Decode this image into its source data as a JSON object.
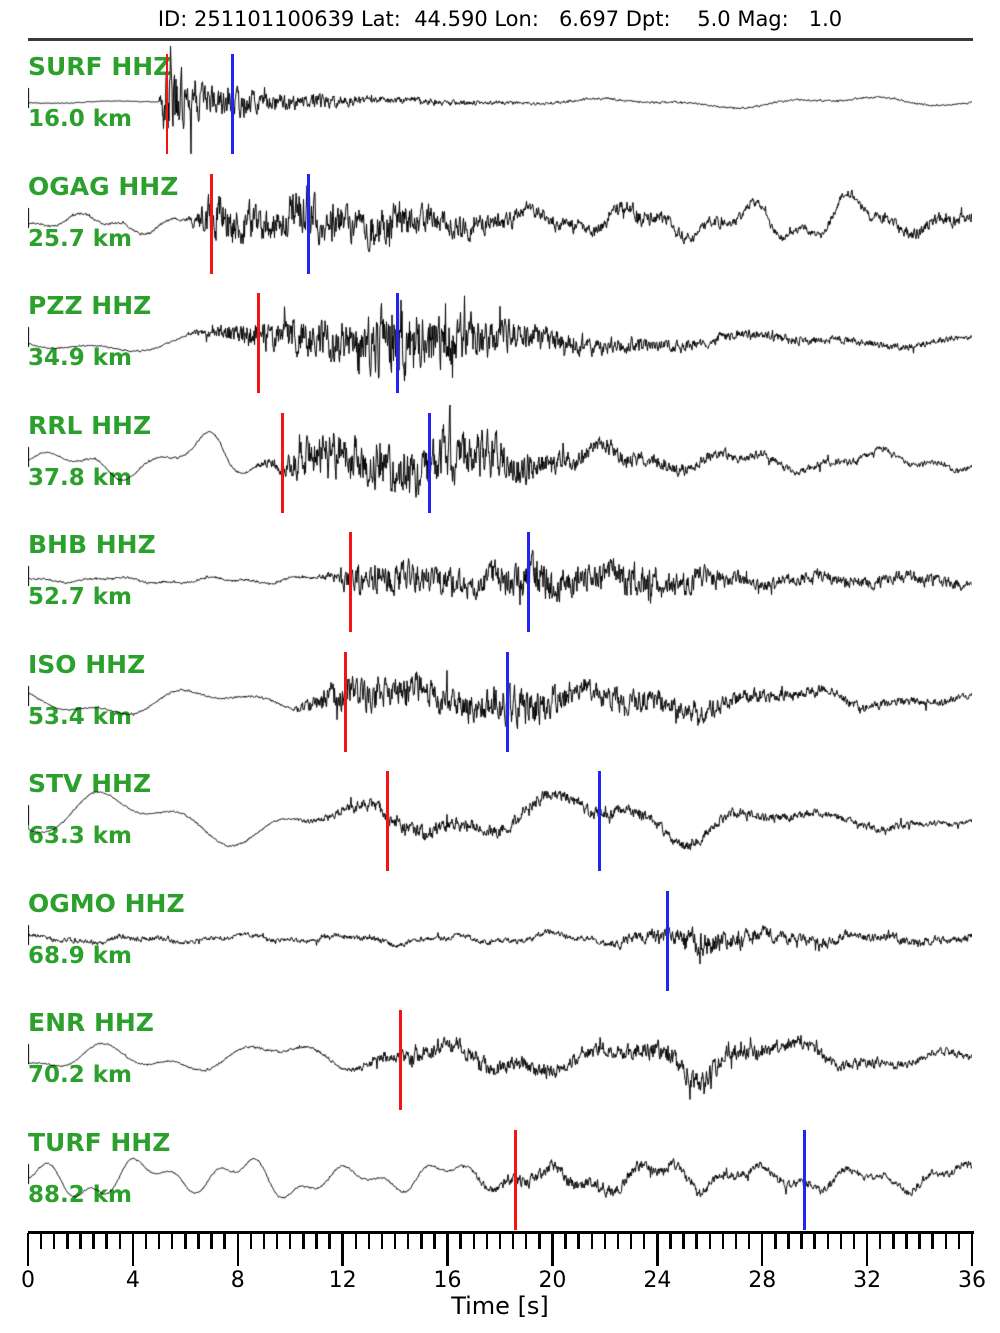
{
  "header": {
    "title": "ID: 251101100639 Lat:  44.590 Lon:   6.697 Dpt:    5.0 Mag:   1.0"
  },
  "colors": {
    "station_label": "#2ca02c",
    "p_pick": "#f41414",
    "s_pick": "#2424f0",
    "trace": "#000000",
    "axis": "#000000"
  },
  "chart_data": {
    "type": "line",
    "title": "ID: 251101100639 Lat:  44.590 Lon:   6.697 Dpt:    5.0 Mag:   1.0",
    "xlabel": "Time [s]",
    "xlim": [
      0,
      36
    ],
    "x_major_ticks": [
      0,
      4,
      8,
      12,
      16,
      20,
      24,
      28,
      32,
      36
    ],
    "x_minor_tick_step": 0.5,
    "grid": false,
    "legend": false,
    "stations": [
      {
        "label": "SURF HHZ",
        "distance": "16.0 km",
        "p_pick_s": 5.3,
        "s_pick_s": 7.8,
        "lf_period_s": 9,
        "seed": 3,
        "envelope": [
          [
            0,
            1.2,
            0.4
          ],
          [
            5.0,
            1.2,
            0.4
          ],
          [
            5.3,
            1.5,
            46
          ],
          [
            5.9,
            1.5,
            30
          ],
          [
            6.6,
            1.5,
            16
          ],
          [
            7.6,
            1.5,
            14
          ],
          [
            8.1,
            1.5,
            18
          ],
          [
            8.7,
            1.5,
            12
          ],
          [
            10,
            1.5,
            8
          ],
          [
            12,
            1.5,
            6
          ],
          [
            14,
            2,
            4
          ],
          [
            17,
            2,
            2.5
          ],
          [
            20,
            3,
            1.6
          ],
          [
            24,
            4,
            1.2
          ],
          [
            28,
            5,
            1
          ],
          [
            31,
            6,
            1
          ],
          [
            34,
            5,
            1
          ],
          [
            36,
            3,
            1
          ]
        ]
      },
      {
        "label": "OGAG HHZ",
        "distance": "25.7 km",
        "p_pick_s": 7.0,
        "s_pick_s": 10.7,
        "lf_period_s": 4.2,
        "seed": 17,
        "envelope": [
          [
            0,
            7,
            1
          ],
          [
            2,
            9,
            1.2
          ],
          [
            4,
            10,
            1.2
          ],
          [
            6,
            8,
            1.5
          ],
          [
            7.0,
            7,
            26
          ],
          [
            8,
            6,
            22
          ],
          [
            9.5,
            6,
            18
          ],
          [
            10.7,
            6,
            30
          ],
          [
            11.2,
            6,
            24
          ],
          [
            12.5,
            9,
            18
          ],
          [
            14,
            12,
            20
          ],
          [
            15.5,
            9,
            12
          ],
          [
            17,
            7,
            12
          ],
          [
            18.5,
            9,
            9
          ],
          [
            20,
            12,
            7
          ],
          [
            21.5,
            13,
            6
          ],
          [
            23,
            15,
            9
          ],
          [
            24.5,
            16,
            7
          ],
          [
            26,
            9,
            6
          ],
          [
            27.5,
            20,
            5
          ],
          [
            29.5,
            28,
            4
          ],
          [
            31.5,
            24,
            5
          ],
          [
            33,
            14,
            6
          ],
          [
            34.5,
            10,
            7
          ],
          [
            36,
            12,
            5
          ]
        ]
      },
      {
        "label": "PZZ HHZ",
        "distance": "34.9 km",
        "p_pick_s": 8.8,
        "s_pick_s": 14.1,
        "lf_period_s": 10,
        "seed": 42,
        "envelope": [
          [
            0,
            11,
            0.7
          ],
          [
            3,
            13,
            0.8
          ],
          [
            6,
            10,
            1
          ],
          [
            8.8,
            9,
            16
          ],
          [
            10,
            7,
            18
          ],
          [
            11.5,
            6,
            22
          ],
          [
            13,
            6,
            30
          ],
          [
            13.9,
            6,
            42
          ],
          [
            15,
            6,
            34
          ],
          [
            16.2,
            6,
            28
          ],
          [
            17.5,
            6,
            20
          ],
          [
            19,
            7,
            14
          ],
          [
            21,
            7,
            10
          ],
          [
            23,
            6,
            8
          ],
          [
            25,
            6,
            6
          ],
          [
            27,
            8,
            5
          ],
          [
            29,
            9,
            5
          ],
          [
            31,
            6,
            4
          ],
          [
            33,
            6,
            4
          ],
          [
            36,
            6,
            3
          ]
        ]
      },
      {
        "label": "RRL HHZ",
        "distance": "37.8 km",
        "p_pick_s": 9.7,
        "s_pick_s": 15.3,
        "lf_period_s": 5.2,
        "seed": 7,
        "envelope": [
          [
            0,
            9,
            0.7
          ],
          [
            1.5,
            14,
            0.8
          ],
          [
            3,
            20,
            0.8
          ],
          [
            4.5,
            10,
            1
          ],
          [
            6,
            16,
            1
          ],
          [
            7.3,
            30,
            1
          ],
          [
            8.5,
            20,
            1.2
          ],
          [
            9.7,
            13,
            9
          ],
          [
            10.5,
            11,
            20
          ],
          [
            12,
            9,
            26
          ],
          [
            13.5,
            9,
            24
          ],
          [
            15.3,
            9,
            30
          ],
          [
            16.5,
            9,
            26
          ],
          [
            18,
            9,
            22
          ],
          [
            19.5,
            10,
            14
          ],
          [
            21,
            13,
            10
          ],
          [
            22.5,
            11,
            9
          ],
          [
            24,
            9,
            7
          ],
          [
            25.5,
            9,
            6
          ],
          [
            27,
            18,
            5
          ],
          [
            28.5,
            12,
            4
          ],
          [
            30,
            7,
            4
          ],
          [
            31.5,
            7,
            4
          ],
          [
            33,
            12,
            3
          ],
          [
            34.5,
            16,
            3
          ],
          [
            36,
            13,
            3
          ]
        ]
      },
      {
        "label": "BHB HHZ",
        "distance": "52.7 km",
        "p_pick_s": 12.3,
        "s_pick_s": 19.1,
        "lf_period_s": 3.8,
        "seed": 23,
        "envelope": [
          [
            0,
            2.5,
            0.9
          ],
          [
            3,
            3,
            1.1
          ],
          [
            6,
            3.5,
            1.3
          ],
          [
            9,
            3.5,
            1.5
          ],
          [
            11,
            4,
            1.6
          ],
          [
            12.3,
            3.5,
            13
          ],
          [
            13.5,
            4,
            17
          ],
          [
            15,
            5,
            15
          ],
          [
            16.5,
            5,
            12
          ],
          [
            18,
            5,
            18
          ],
          [
            19.1,
            5,
            22
          ],
          [
            20.5,
            5,
            17
          ],
          [
            22,
            6,
            15
          ],
          [
            23.5,
            6,
            19
          ],
          [
            25,
            6,
            13
          ],
          [
            26.5,
            5,
            9
          ],
          [
            28,
            5,
            7
          ],
          [
            29.5,
            4,
            6
          ],
          [
            31,
            4,
            6
          ],
          [
            32.5,
            4,
            7
          ],
          [
            34,
            4,
            7
          ],
          [
            36,
            4,
            5
          ]
        ]
      },
      {
        "label": "ISO HHZ",
        "distance": "53.4 km",
        "p_pick_s": 12.1,
        "s_pick_s": 18.3,
        "lf_period_s": 7.5,
        "seed": 91,
        "envelope": [
          [
            0,
            11,
            0.7
          ],
          [
            2.5,
            15,
            0.8
          ],
          [
            5,
            13,
            0.9
          ],
          [
            7.5,
            9,
            1.1
          ],
          [
            10,
            9,
            1.4
          ],
          [
            12.1,
            10,
            20
          ],
          [
            13.2,
            11,
            16
          ],
          [
            14.5,
            12,
            16
          ],
          [
            16,
            11,
            15
          ],
          [
            17.3,
            10,
            18
          ],
          [
            18.3,
            10,
            22
          ],
          [
            19.5,
            12,
            18
          ],
          [
            21,
            14,
            13
          ],
          [
            22.5,
            13,
            12
          ],
          [
            24,
            12,
            12
          ],
          [
            25.5,
            11,
            10
          ],
          [
            27,
            7,
            9
          ],
          [
            28.5,
            7,
            7
          ],
          [
            30,
            9,
            6
          ],
          [
            31.5,
            10,
            5
          ],
          [
            33,
            9,
            5
          ],
          [
            34.5,
            7,
            4
          ],
          [
            36,
            6,
            4
          ]
        ]
      },
      {
        "label": "STV HHZ",
        "distance": "63.3 km",
        "p_pick_s": 13.7,
        "s_pick_s": 21.8,
        "lf_period_s": 8.5,
        "seed": 55,
        "envelope": [
          [
            0,
            19,
            0.7
          ],
          [
            2.5,
            27,
            0.8
          ],
          [
            5,
            23,
            0.8
          ],
          [
            7.5,
            21,
            1
          ],
          [
            10,
            20,
            1.1
          ],
          [
            13.7,
            17,
            8
          ],
          [
            15,
            18,
            8
          ],
          [
            16.5,
            20,
            7
          ],
          [
            18,
            23,
            7
          ],
          [
            19.5,
            21,
            7
          ],
          [
            21.8,
            19,
            7
          ],
          [
            23.5,
            25,
            6
          ],
          [
            25.5,
            27,
            6
          ],
          [
            27,
            16,
            5
          ],
          [
            28.5,
            9,
            5
          ],
          [
            30,
            8,
            4
          ],
          [
            31.5,
            8,
            4
          ],
          [
            33,
            10,
            4
          ],
          [
            34.5,
            9,
            3
          ],
          [
            36,
            8,
            3
          ]
        ]
      },
      {
        "label": "OGMO HHZ",
        "distance": "68.9 km",
        "p_pick_s": null,
        "s_pick_s": 24.4,
        "lf_period_s": 4.0,
        "seed": 64,
        "envelope": [
          [
            0,
            3,
            2.2
          ],
          [
            2,
            4,
            2.8
          ],
          [
            4,
            4,
            3
          ],
          [
            6,
            3,
            2.4
          ],
          [
            8,
            3.5,
            2.4
          ],
          [
            10,
            4,
            2.6
          ],
          [
            12,
            4,
            3
          ],
          [
            14,
            5,
            3
          ],
          [
            16,
            4,
            2.8
          ],
          [
            18,
            5,
            2.8
          ],
          [
            20,
            6,
            3
          ],
          [
            22,
            5,
            3
          ],
          [
            24.4,
            6,
            9
          ],
          [
            25.5,
            6,
            14
          ],
          [
            26.5,
            6,
            12
          ],
          [
            27.7,
            5,
            9
          ],
          [
            29,
            5,
            6
          ],
          [
            30.5,
            5,
            6
          ],
          [
            32,
            4,
            5
          ],
          [
            33.5,
            4,
            5
          ],
          [
            35,
            3,
            4
          ],
          [
            36,
            3,
            4
          ]
        ]
      },
      {
        "label": "ENR HHZ",
        "distance": "70.2 km",
        "p_pick_s": 14.2,
        "s_pick_s": null,
        "lf_period_s": 6.5,
        "seed": 29,
        "envelope": [
          [
            0,
            13,
            0.7
          ],
          [
            2,
            17,
            0.8
          ],
          [
            4,
            15,
            0.8
          ],
          [
            6,
            13,
            1
          ],
          [
            8,
            12,
            1.2
          ],
          [
            10,
            13,
            1.4
          ],
          [
            12,
            14,
            1.5
          ],
          [
            14.2,
            11,
            8
          ],
          [
            15.5,
            12,
            10
          ],
          [
            17,
            16,
            9
          ],
          [
            18.5,
            15,
            9
          ],
          [
            20,
            13,
            8
          ],
          [
            21.5,
            12,
            8
          ],
          [
            23,
            16,
            9
          ],
          [
            24.5,
            21,
            11
          ],
          [
            26,
            25,
            12
          ],
          [
            27.5,
            17,
            9
          ],
          [
            29,
            13,
            7
          ],
          [
            30.5,
            13,
            6
          ],
          [
            32,
            11,
            5
          ],
          [
            33.5,
            9,
            4
          ],
          [
            35,
            8,
            4
          ],
          [
            36,
            8,
            4
          ]
        ]
      },
      {
        "label": "TURF HHZ",
        "distance": "88.2 km",
        "p_pick_s": 18.6,
        "s_pick_s": 29.6,
        "lf_period_s": 3.9,
        "seed": 77,
        "envelope": [
          [
            0,
            15,
            0.7
          ],
          [
            2.5,
            26,
            0.7
          ],
          [
            4.5,
            14,
            0.8
          ],
          [
            6.5,
            17,
            0.9
          ],
          [
            8.5,
            24,
            0.9
          ],
          [
            10.5,
            16,
            1
          ],
          [
            12.5,
            11,
            1
          ],
          [
            14.5,
            16,
            1.1
          ],
          [
            16.5,
            13,
            1.4
          ],
          [
            18.6,
            11,
            7
          ],
          [
            20,
            13,
            7
          ],
          [
            21.5,
            11,
            6
          ],
          [
            23,
            15,
            6
          ],
          [
            24.8,
            18,
            6
          ],
          [
            26.5,
            13,
            5
          ],
          [
            28,
            11,
            5
          ],
          [
            29.6,
            11,
            5
          ],
          [
            31,
            13,
            4
          ],
          [
            32.5,
            11,
            4
          ],
          [
            34,
            14,
            4
          ],
          [
            35.2,
            15,
            4
          ],
          [
            36,
            11,
            4
          ]
        ]
      }
    ]
  },
  "axis": {
    "label": "Time [s]",
    "tick_labels": [
      "0",
      "4",
      "8",
      "12",
      "16",
      "20",
      "24",
      "28",
      "32",
      "36"
    ]
  }
}
